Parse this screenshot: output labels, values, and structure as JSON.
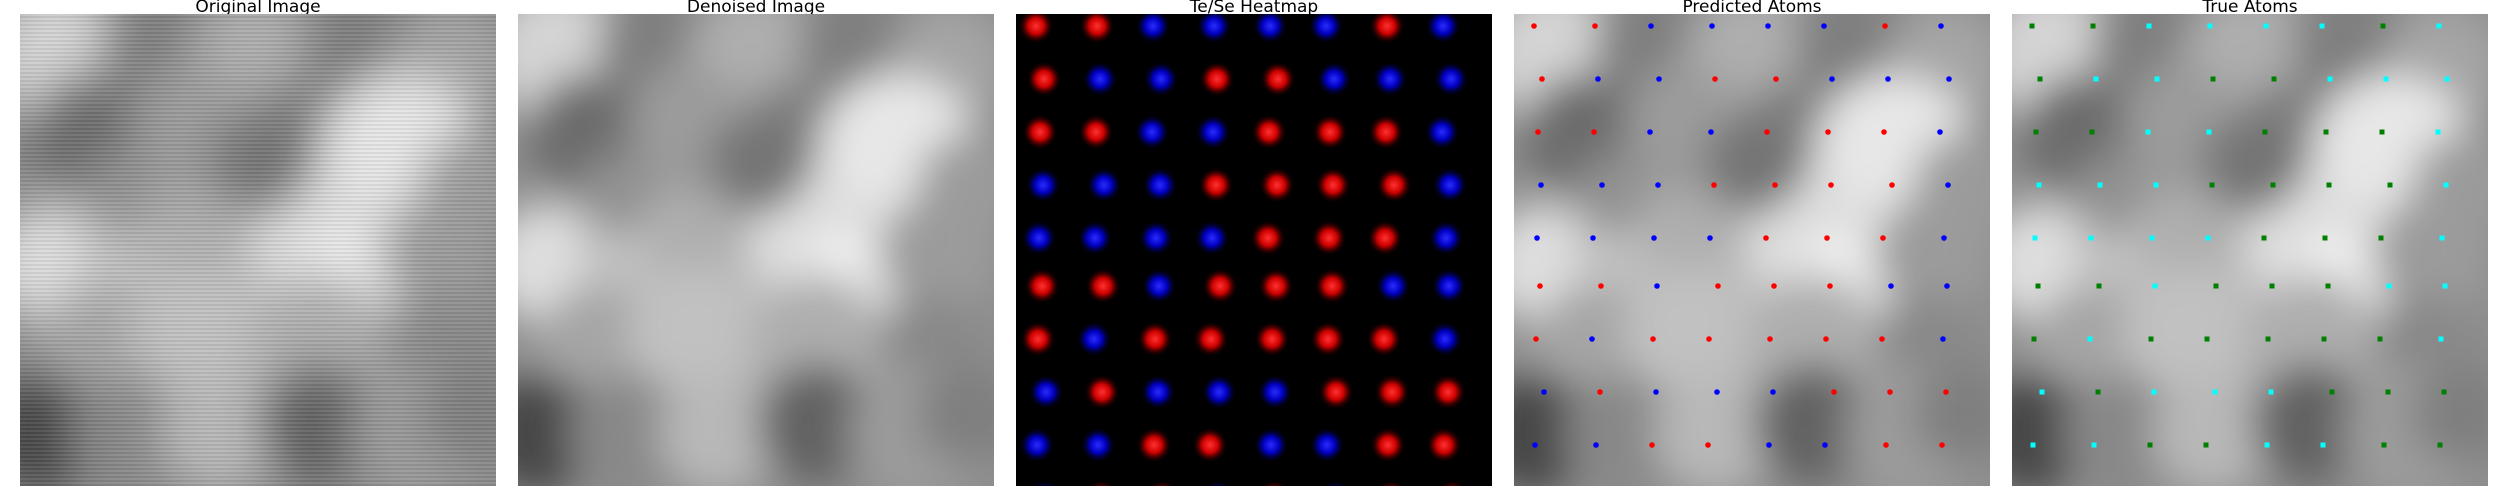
{
  "figure": {
    "panels": [
      {
        "id": "original",
        "title": "Original Image"
      },
      {
        "id": "denoised",
        "title": "Denoised Image"
      },
      {
        "id": "heatmap",
        "title": "Te/Se Heatmap"
      },
      {
        "id": "predicted",
        "title": "Predicted Atoms"
      },
      {
        "id": "true",
        "title": "True Atoms"
      }
    ]
  },
  "colors": {
    "te": "#ff2020",
    "se": "#2a2aff",
    "pred_te": "#ff0000",
    "pred_se": "#0000ff",
    "true_a": "#00ffff",
    "true_b": "#008000",
    "background": "#ffffff",
    "heatmap_bg": "#000000"
  },
  "atoms": {
    "predicted_grid": [
      "RRBBBBRB",
      "RBBRRBBB",
      "RRBBRRRB",
      "BBBRRRRB",
      "BBBBRRRB",
      "RRBRRRBB",
      "RBRRRRRB",
      "BRBBBRRR",
      "BBRRBBRR",
      "BRRBRBRR"
    ],
    "true_grid": [
      "GGCCCCGC",
      "GCCGGCCC",
      "GGCCGGGC",
      "CCCGGGGC",
      "CCCCGGGC",
      "GGCGGGCC",
      "GCGGGGGC",
      "CGCCCGGG",
      "CCGGCCGG",
      "CGGCGCGG"
    ]
  }
}
